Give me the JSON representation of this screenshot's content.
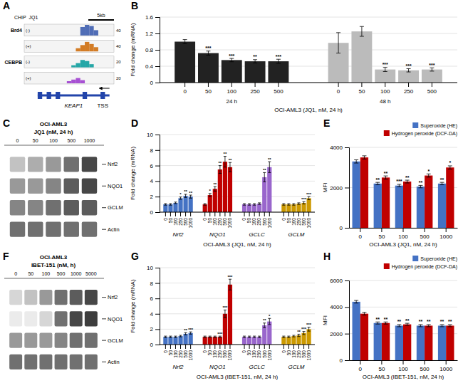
{
  "chart_data": [
    {
      "type": "tracks",
      "title": "A",
      "chip_label": "CHIP  JQ1",
      "scale_bar": "5kb",
      "xlim": [
        0,
        10
      ],
      "series": [
        {
          "name": "Brd4",
          "strand": "(-)",
          "color": "#3355aa",
          "max_val": 40,
          "x": [
            6.5,
            7.0,
            7.5,
            8.0
          ],
          "values": [
            0.8,
            1.0,
            0.9,
            0.5
          ]
        },
        {
          "name": null,
          "strand": "(+)",
          "color": "#cc6600",
          "max_val": 40,
          "x": [
            6.0,
            6.5,
            7.0,
            7.5,
            8.0
          ],
          "values": [
            0.3,
            0.6,
            0.9,
            0.7,
            0.4
          ]
        },
        {
          "name": "CEBPB",
          "strand": "(-)",
          "color": "#009999",
          "max_val": 20,
          "x": [
            5.5,
            6.0,
            6.5,
            7.0,
            7.5
          ],
          "values": [
            0.2,
            0.4,
            0.7,
            0.6,
            0.3
          ]
        },
        {
          "name": null,
          "strand": "(+)",
          "color": "#9933cc",
          "max_val": 20,
          "x": [
            5.0,
            5.5,
            6.0,
            6.5
          ],
          "values": [
            0.2,
            0.35,
            0.5,
            0.3
          ]
        }
      ],
      "gene": {
        "name": "KEAP1",
        "color": "#2244aa",
        "span": [
          1.5,
          9.5
        ],
        "exons": [
          1.5,
          2.5,
          3.5,
          6.5,
          8.5
        ],
        "tss_label": "TSS"
      }
    },
    {
      "type": "bar",
      "title": "B",
      "ylabel": "Fold change (mRNA)",
      "xlabel": "OCI-AML3 (JQ1, nM, 24 h)",
      "ylim": [
        0,
        1.6
      ],
      "yticks": [
        0,
        0.4,
        0.8,
        1.2,
        1.6
      ],
      "grid": true,
      "categories": [
        "0",
        "50",
        "100",
        "250",
        "500"
      ],
      "series": [
        {
          "name": "24 h",
          "color": "#222222",
          "values": [
            1.0,
            0.72,
            0.55,
            0.52,
            0.52
          ],
          "errors": [
            0.05,
            0.05,
            0.04,
            0.04,
            0.05
          ],
          "stars": [
            null,
            "***",
            "***",
            "**",
            "***"
          ]
        },
        {
          "name": "48 h",
          "color": "#bbbbbb",
          "values": [
            0.97,
            1.25,
            0.32,
            0.3,
            0.32
          ],
          "errors": [
            0.25,
            0.12,
            0.05,
            0.04,
            0.04
          ],
          "stars": [
            null,
            null,
            "***",
            "***",
            "***"
          ]
        }
      ]
    },
    {
      "type": "blot",
      "title": "C",
      "cell_line": "OCI-AML3",
      "treatment": "JQ1 (nM, 24 h)",
      "categories": [
        "0",
        "50",
        "100",
        "500",
        "1000"
      ],
      "clim": [
        0,
        1
      ],
      "series": [
        {
          "name": "Nrf2",
          "values": [
            0.3,
            0.4,
            0.5,
            0.7,
            0.9
          ]
        },
        {
          "name": "NQO1",
          "values": [
            0.5,
            0.5,
            0.6,
            0.8,
            0.9
          ]
        },
        {
          "name": "GCLM",
          "values": [
            0.6,
            0.6,
            0.7,
            0.8,
            0.8
          ]
        },
        {
          "name": "Actin",
          "values": [
            0.7,
            0.7,
            0.7,
            0.7,
            0.7
          ]
        }
      ]
    },
    {
      "type": "bar",
      "title": "D",
      "ylabel": "Fold change (mRNA)",
      "xlabel": "OCI-AML3 (JQ1, nM, 24 h)",
      "ylim": [
        0,
        10
      ],
      "yticks": [
        0,
        2,
        4,
        6,
        8,
        10
      ],
      "grid": true,
      "categories": [
        "0",
        "50",
        "100",
        "250",
        "500",
        "1000"
      ],
      "series": [
        {
          "name": "Nrf2",
          "color": "#4472c4",
          "values": [
            1.0,
            1.0,
            1.2,
            1.8,
            2.1,
            2.0
          ],
          "errors": [
            0.1,
            0.1,
            0.1,
            0.15,
            0.2,
            0.2
          ],
          "stars": [
            null,
            null,
            null,
            "*",
            "**",
            "**"
          ]
        },
        {
          "name": "NQO1",
          "color": "#c00000",
          "values": [
            1.0,
            2.2,
            3.0,
            5.5,
            6.5,
            5.8
          ],
          "errors": [
            0.1,
            0.2,
            0.3,
            0.5,
            0.7,
            0.6
          ],
          "stars": [
            null,
            "*",
            "**",
            "**",
            "**",
            "**"
          ]
        },
        {
          "name": "GCLC",
          "color": "#9966cc",
          "values": [
            1.0,
            1.0,
            1.0,
            1.1,
            4.5,
            5.8
          ],
          "errors": [
            0.1,
            0.1,
            0.1,
            0.1,
            0.6,
            0.7
          ],
          "stars": [
            null,
            null,
            null,
            null,
            "**",
            "**"
          ]
        },
        {
          "name": "GCLM",
          "color": "#cc9900",
          "values": [
            1.0,
            1.0,
            1.0,
            1.1,
            1.2,
            1.8
          ],
          "errors": [
            0.1,
            0.1,
            0.1,
            0.1,
            0.15,
            0.2
          ],
          "stars": [
            null,
            null,
            null,
            null,
            "***",
            "***"
          ]
        }
      ]
    },
    {
      "type": "bar",
      "title": "E",
      "ylabel": "MFI",
      "xlabel": "OCI-AML3 (JQ1, nM, 24 h)",
      "ylim": [
        0,
        4000
      ],
      "yticks": [
        0,
        2000,
        4000
      ],
      "grid": true,
      "legend": "upper right",
      "categories": [
        "0",
        "50",
        "100",
        "500",
        "1000"
      ],
      "series": [
        {
          "name": "Superoxide (HE)",
          "color": "#4472c4",
          "values": [
            3300,
            2200,
            2100,
            2050,
            2200
          ],
          "errors": [
            80,
            60,
            60,
            60,
            60
          ],
          "stars": [
            null,
            "**",
            "***",
            "**",
            "**"
          ]
        },
        {
          "name": "Hydrogen peroxide (DCF-DA)",
          "color": "#c00000",
          "values": [
            3500,
            2500,
            2300,
            2600,
            3000
          ],
          "errors": [
            80,
            80,
            70,
            80,
            80
          ],
          "stars": [
            null,
            "**",
            "**",
            "*",
            "*"
          ]
        }
      ]
    },
    {
      "type": "blot",
      "title": "F",
      "cell_line": "OCI-AML3",
      "treatment": "IBET-151 (nM, h)",
      "categories": [
        "0",
        "50",
        "100",
        "500",
        "1000",
        "5000"
      ],
      "clim": [
        0,
        1
      ],
      "series": [
        {
          "name": "Nrf2",
          "values": [
            0.2,
            0.3,
            0.5,
            0.7,
            0.8,
            0.9
          ]
        },
        {
          "name": "NQO1",
          "values": [
            0.1,
            0.1,
            0.2,
            0.7,
            0.9,
            0.95
          ]
        },
        {
          "name": "GCLM",
          "values": [
            0.5,
            0.5,
            0.5,
            0.6,
            0.7,
            0.7
          ]
        },
        {
          "name": "Actin",
          "values": [
            0.7,
            0.7,
            0.7,
            0.7,
            0.7,
            0.7
          ]
        }
      ]
    },
    {
      "type": "bar",
      "title": "G",
      "ylabel": "Fold change (mRNA)",
      "xlabel": "OCI-AML3 (IBET-151, nM, 24 h)",
      "ylim": [
        0,
        10
      ],
      "yticks": [
        0,
        2,
        4,
        6,
        8,
        10
      ],
      "grid": true,
      "categories": [
        "0",
        "50",
        "100",
        "250",
        "500",
        "1000"
      ],
      "series": [
        {
          "name": "Nrf2",
          "color": "#4472c4",
          "values": [
            1.0,
            1.0,
            1.0,
            1.1,
            1.4,
            1.5
          ],
          "errors": [
            0.1,
            0.1,
            0.1,
            0.1,
            0.15,
            0.15
          ],
          "stars": [
            null,
            null,
            null,
            null,
            "**",
            "***"
          ]
        },
        {
          "name": "NQO1",
          "color": "#c00000",
          "values": [
            1.0,
            1.0,
            1.0,
            1.0,
            4.0,
            7.8
          ],
          "errors": [
            0.1,
            0.1,
            0.1,
            0.1,
            0.5,
            0.7
          ],
          "stars": [
            null,
            null,
            null,
            "***",
            "***",
            "***"
          ]
        },
        {
          "name": "GCLC",
          "color": "#9966cc",
          "values": [
            1.0,
            1.0,
            1.0,
            1.0,
            2.5,
            3.0
          ],
          "errors": [
            0.1,
            0.1,
            0.1,
            0.1,
            0.3,
            0.4
          ],
          "stars": [
            null,
            null,
            null,
            null,
            "**",
            "*"
          ]
        },
        {
          "name": "GCLM",
          "color": "#cc9900",
          "values": [
            1.0,
            1.0,
            1.1,
            1.2,
            1.5,
            2.0
          ],
          "errors": [
            0.1,
            0.1,
            0.1,
            0.15,
            0.2,
            0.25
          ],
          "stars": [
            null,
            null,
            null,
            "**",
            "***",
            "***"
          ]
        }
      ]
    },
    {
      "type": "bar",
      "title": "H",
      "ylabel": "MFI",
      "xlabel": "OCI-AML3 (IBET-151, nM, 24 h)",
      "ylim": [
        0,
        6000
      ],
      "yticks": [
        0,
        2000,
        4000,
        6000
      ],
      "grid": true,
      "legend": "upper right",
      "categories": [
        "0",
        "50",
        "100",
        "500",
        "1000"
      ],
      "series": [
        {
          "name": "Superoxide (HE)",
          "color": "#4472c4",
          "values": [
            4400,
            2800,
            2600,
            2600,
            2600
          ],
          "errors": [
            100,
            80,
            80,
            80,
            80
          ],
          "stars": [
            null,
            "**",
            "**",
            "**",
            "**"
          ]
        },
        {
          "name": "Hydrogen peroxide (DCF-DA)",
          "color": "#c00000",
          "values": [
            3500,
            2800,
            2700,
            2600,
            2600
          ],
          "errors": [
            100,
            80,
            80,
            80,
            80
          ],
          "stars": [
            null,
            "**",
            "**",
            "**",
            "**"
          ]
        }
      ]
    }
  ]
}
